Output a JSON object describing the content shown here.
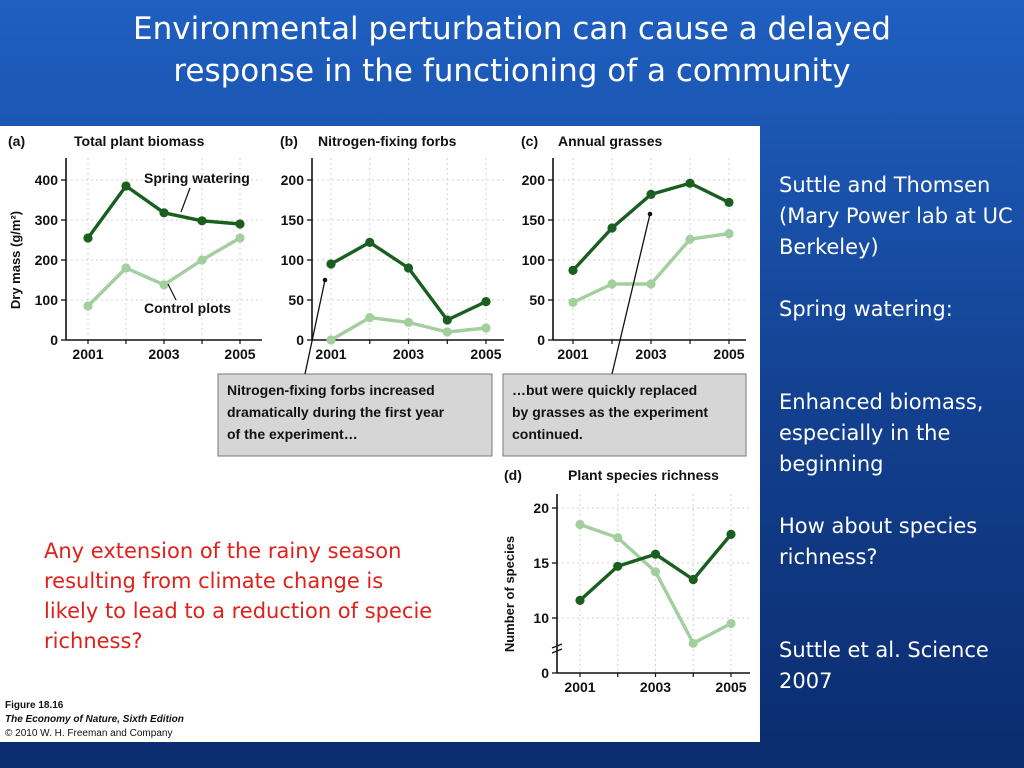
{
  "slide": {
    "title_line1": "Environmental perturbation can cause a delayed",
    "title_line2": "response in the functioning of a community"
  },
  "side_notes": {
    "authors": "Suttle and Thomsen (Mary Power lab at UC Berkeley)",
    "spring_watering": "Spring watering:",
    "enhanced": "Enhanced biomass, especially in the beginning",
    "question": "How about species richness?",
    "citation": "Suttle et al. Science 2007"
  },
  "red_note": "Any extension of the rainy season resulting from climate change is likely to lead to a reduction of specie richness?",
  "figure": {
    "caption_line1": "Figure 18.16",
    "caption_line2": "The Economy of Nature, Sixth Edition",
    "caption_line3": "© 2010 W. H. Freeman and Company",
    "callout_left_line1": "Nitrogen-fixing forbs increased",
    "callout_left_line2": "dramatically during the first year",
    "callout_left_line3": "of the experiment…",
    "callout_right_line1": "…but were quickly replaced",
    "callout_right_line2": "by grasses as the experiment",
    "callout_right_line3": "continued.",
    "label_spring": "Spring watering",
    "label_control": "Control plots"
  },
  "colors": {
    "spring": "#1a5e20",
    "control": "#a3cf9f"
  },
  "chart_data": [
    {
      "type": "line",
      "panel_letter": "(a)",
      "title": "Total plant biomass",
      "ylabel": "Dry mass (g/m²)",
      "xlabel": "",
      "x": [
        2001,
        2002,
        2003,
        2004,
        2005
      ],
      "xticks": [
        2001,
        2003,
        2005
      ],
      "yticks": [
        0,
        100,
        200,
        300,
        400
      ],
      "ylim": [
        0,
        440
      ],
      "series": [
        {
          "name": "Spring watering",
          "values": [
            255,
            385,
            318,
            298,
            290
          ]
        },
        {
          "name": "Control plots",
          "values": [
            85,
            180,
            138,
            200,
            255
          ]
        }
      ]
    },
    {
      "type": "line",
      "panel_letter": "(b)",
      "title": "Nitrogen-fixing forbs",
      "ylabel": "",
      "xlabel": "",
      "x": [
        2001,
        2002,
        2003,
        2004,
        2005
      ],
      "xticks": [
        2001,
        2003,
        2005
      ],
      "yticks": [
        0,
        50,
        100,
        150,
        200
      ],
      "ylim": [
        0,
        220
      ],
      "series": [
        {
          "name": "Spring watering",
          "values": [
            95,
            122,
            90,
            25,
            48
          ]
        },
        {
          "name": "Control plots",
          "values": [
            0,
            28,
            22,
            10,
            15
          ]
        }
      ]
    },
    {
      "type": "line",
      "panel_letter": "(c)",
      "title": "Annual grasses",
      "ylabel": "",
      "xlabel": "",
      "x": [
        2001,
        2002,
        2003,
        2004,
        2005
      ],
      "xticks": [
        2001,
        2003,
        2005
      ],
      "yticks": [
        0,
        50,
        100,
        150,
        200
      ],
      "ylim": [
        0,
        220
      ],
      "series": [
        {
          "name": "Spring watering",
          "values": [
            87,
            140,
            182,
            196,
            172
          ]
        },
        {
          "name": "Control plots",
          "values": [
            47,
            70,
            70,
            126,
            133
          ]
        }
      ]
    },
    {
      "type": "line",
      "panel_letter": "(d)",
      "title": "Plant species richness",
      "ylabel": "Number of species",
      "xlabel": "",
      "x": [
        2001,
        2002,
        2003,
        2004,
        2005
      ],
      "xticks": [
        2001,
        2003,
        2005
      ],
      "yticks": [
        0,
        10,
        15,
        20
      ],
      "ylim_broken": true,
      "ylim": [
        5,
        21
      ],
      "series": [
        {
          "name": "Spring watering",
          "values": [
            11.6,
            14.7,
            15.8,
            13.5,
            17.6
          ]
        },
        {
          "name": "Control plots",
          "values": [
            18.5,
            17.3,
            14.2,
            7.7,
            9.5
          ]
        }
      ]
    }
  ]
}
